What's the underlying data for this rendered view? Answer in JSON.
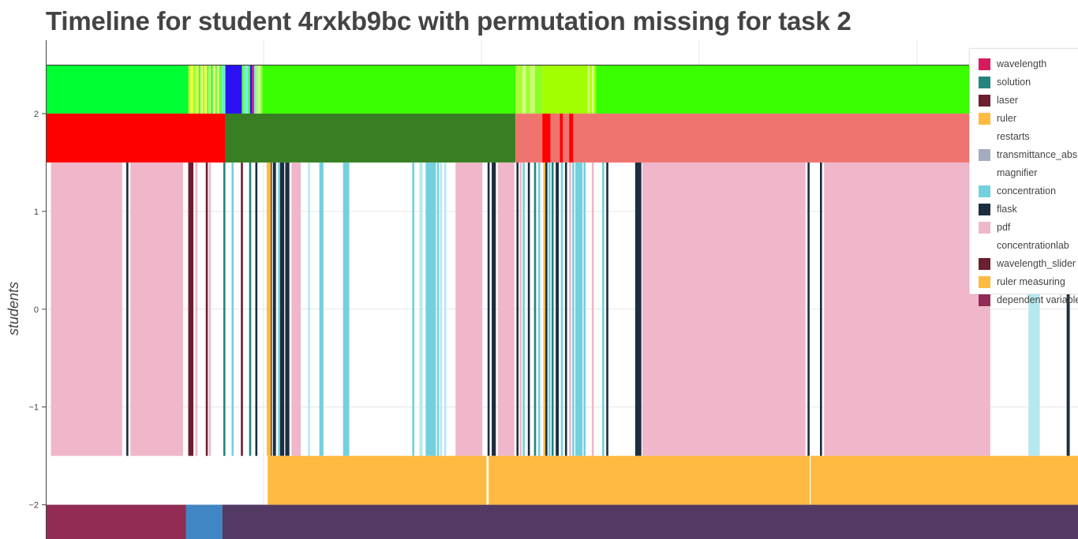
{
  "chart_data": {
    "type": "timeline",
    "title": "Timeline for student 4rxkb9bc with permutation missing for task 2",
    "ylabel": "students",
    "xlabel": "",
    "ylim": [
      -2.35,
      2.75
    ],
    "y_ticks": [
      2,
      1,
      0,
      -1,
      -2
    ],
    "y_tick_labels": [
      "2",
      "1",
      "0",
      "−1",
      "−2"
    ],
    "x_range": [
      0,
      1000
    ],
    "x_gridlines": [
      211,
      422,
      633,
      844
    ],
    "grid": true,
    "legend_position": "top-right",
    "legend": [
      {
        "label": "wavelength",
        "color": "#d81b60"
      },
      {
        "label": "solution",
        "color": "#26837d"
      },
      {
        "label": "laser",
        "color": "#6b1f31"
      },
      {
        "label": "ruler",
        "color": "#ffba42"
      },
      {
        "label": "restarts",
        "color": "#ffffff"
      },
      {
        "label": "transmittance_abs",
        "color": "#a3adbf"
      },
      {
        "label": "magnifier",
        "color": "#ffffff"
      },
      {
        "label": "concentration",
        "color": "#73d0dd"
      },
      {
        "label": "flask",
        "color": "#1b2e41"
      },
      {
        "label": "pdf",
        "color": "#efb7c9"
      },
      {
        "label": "concentrationlab",
        "color": "#ffffff"
      },
      {
        "label": "wavelength_slider",
        "color": "#6b1f31"
      },
      {
        "label": "ruler measuring",
        "color": "#ffba42"
      },
      {
        "label": "dependent variable",
        "color": "#922c54"
      }
    ],
    "rows": [
      {
        "name": "lane-top",
        "y_range": [
          2.0,
          2.5
        ],
        "segments": [
          {
            "start": 0,
            "end": 138,
            "color": "#00ff33"
          },
          {
            "start": 138,
            "end": 140,
            "color": "#b6ff3a"
          },
          {
            "start": 140,
            "end": 143,
            "color": "#e9ff33"
          },
          {
            "start": 143,
            "end": 145,
            "color": "#8bff3a"
          },
          {
            "start": 145,
            "end": 148,
            "color": "#d8ff55"
          },
          {
            "start": 148,
            "end": 150,
            "color": "#55ff2a"
          },
          {
            "start": 150,
            "end": 152,
            "color": "#f0ff70"
          },
          {
            "start": 152,
            "end": 154,
            "color": "#a8ff30"
          },
          {
            "start": 154,
            "end": 156,
            "color": "#ffff66"
          },
          {
            "start": 156,
            "end": 158,
            "color": "#66ff33"
          },
          {
            "start": 158,
            "end": 160,
            "color": "#c6ff7a"
          },
          {
            "start": 160,
            "end": 162,
            "color": "#3aff2a"
          },
          {
            "start": 162,
            "end": 164,
            "color": "#ffffa0"
          },
          {
            "start": 164,
            "end": 166,
            "color": "#7cff33"
          },
          {
            "start": 166,
            "end": 168,
            "color": "#dcff8a"
          },
          {
            "start": 168,
            "end": 170,
            "color": "#5eff33"
          },
          {
            "start": 170,
            "end": 174,
            "color": "#6cf0c0"
          },
          {
            "start": 174,
            "end": 190,
            "color": "#2a12f2"
          },
          {
            "start": 190,
            "end": 193,
            "color": "#66ff66"
          },
          {
            "start": 193,
            "end": 196,
            "color": "#7fe8f0"
          },
          {
            "start": 196,
            "end": 198,
            "color": "#3aff33"
          },
          {
            "start": 198,
            "end": 200,
            "color": "#2a12f2"
          },
          {
            "start": 200,
            "end": 202,
            "color": "#ff1a6e"
          },
          {
            "start": 202,
            "end": 204,
            "color": "#70f0e8"
          },
          {
            "start": 204,
            "end": 206,
            "color": "#b0ff60"
          },
          {
            "start": 206,
            "end": 208,
            "color": "#e8ff80"
          },
          {
            "start": 208,
            "end": 210,
            "color": "#7aff40"
          },
          {
            "start": 210,
            "end": 455,
            "color": "#3aff00"
          },
          {
            "start": 455,
            "end": 462,
            "color": "#a8ff33"
          },
          {
            "start": 462,
            "end": 465,
            "color": "#d8ff88"
          },
          {
            "start": 465,
            "end": 469,
            "color": "#9cff33"
          },
          {
            "start": 469,
            "end": 474,
            "color": "#c8ff70"
          },
          {
            "start": 474,
            "end": 481,
            "color": "#8cff22"
          },
          {
            "start": 481,
            "end": 525,
            "color": "#a2ff00"
          },
          {
            "start": 525,
            "end": 527,
            "color": "#d2ff7a"
          },
          {
            "start": 527,
            "end": 529,
            "color": "#a2ff00"
          },
          {
            "start": 529,
            "end": 531,
            "color": "#d8ff88"
          },
          {
            "start": 531,
            "end": 533,
            "color": "#a2ff00"
          },
          {
            "start": 533,
            "end": 1000,
            "color": "#3aff00"
          }
        ]
      },
      {
        "name": "lane-second",
        "y_range": [
          1.5,
          2.0
        ],
        "segments": [
          {
            "start": 0,
            "end": 174,
            "color": "#ff0000"
          },
          {
            "start": 174,
            "end": 455,
            "color": "#377f22"
          },
          {
            "start": 455,
            "end": 481,
            "color": "#ef7470"
          },
          {
            "start": 481,
            "end": 489,
            "color": "#ff0000"
          },
          {
            "start": 489,
            "end": 498,
            "color": "#ef7470"
          },
          {
            "start": 498,
            "end": 501,
            "color": "#ff0000"
          },
          {
            "start": 501,
            "end": 507,
            "color": "#ef7470"
          },
          {
            "start": 507,
            "end": 511,
            "color": "#ff0000"
          },
          {
            "start": 511,
            "end": 1000,
            "color": "#ef7470"
          }
        ]
      },
      {
        "name": "lane-tools",
        "y_range": [
          -1.5,
          1.5
        ],
        "segments": [
          {
            "start": 5,
            "end": 74,
            "color": "#efb7c9"
          },
          {
            "start": 78,
            "end": 80,
            "color": "#1b2e41"
          },
          {
            "start": 82,
            "end": 133,
            "color": "#efb7c9"
          },
          {
            "start": 138,
            "end": 143,
            "color": "#6b1f31"
          },
          {
            "start": 145,
            "end": 147,
            "color": "#efb7c9"
          },
          {
            "start": 155,
            "end": 157,
            "color": "#6b1f31"
          },
          {
            "start": 158,
            "end": 160,
            "color": "#efb7c9"
          },
          {
            "start": 172,
            "end": 174,
            "color": "#26837d"
          },
          {
            "start": 180,
            "end": 182,
            "color": "#73d0dd"
          },
          {
            "start": 189,
            "end": 191,
            "color": "#6b1f31"
          },
          {
            "start": 197,
            "end": 199,
            "color": "#26837d"
          },
          {
            "start": 203,
            "end": 205,
            "color": "#1b2e41"
          },
          {
            "start": 214,
            "end": 218,
            "color": "#ffba42"
          },
          {
            "start": 218,
            "end": 219,
            "color": "#1b2e41"
          },
          {
            "start": 220,
            "end": 223,
            "color": "#1b2e41"
          },
          {
            "start": 225,
            "end": 227,
            "color": "#73d0dd"
          },
          {
            "start": 227,
            "end": 231,
            "color": "#1b2e41"
          },
          {
            "start": 232,
            "end": 236,
            "color": "#1b2e41"
          },
          {
            "start": 238,
            "end": 247,
            "color": "#efb7c9"
          },
          {
            "start": 254,
            "end": 256,
            "color": "#b5e8ef"
          },
          {
            "start": 265,
            "end": 269,
            "color": "#73d0dd"
          },
          {
            "start": 288,
            "end": 294,
            "color": "#73d0dd"
          },
          {
            "start": 355,
            "end": 357,
            "color": "#73d0dd"
          },
          {
            "start": 362,
            "end": 365,
            "color": "#b5e8ef"
          },
          {
            "start": 368,
            "end": 378,
            "color": "#73d0dd"
          },
          {
            "start": 379,
            "end": 381,
            "color": "#73d0dd"
          },
          {
            "start": 382,
            "end": 384,
            "color": "#b5e8ef"
          },
          {
            "start": 386,
            "end": 388,
            "color": "#b5e8ef"
          },
          {
            "start": 397,
            "end": 423,
            "color": "#efb7c9"
          },
          {
            "start": 428,
            "end": 430,
            "color": "#1b2e41"
          },
          {
            "start": 432,
            "end": 436,
            "color": "#1b2e41"
          },
          {
            "start": 438,
            "end": 454,
            "color": "#efb7c9"
          },
          {
            "start": 456,
            "end": 458,
            "color": "#1b2e41"
          },
          {
            "start": 459,
            "end": 461,
            "color": "#efb7c9"
          },
          {
            "start": 462,
            "end": 464,
            "color": "#73d0dd"
          },
          {
            "start": 467,
            "end": 469,
            "color": "#1b2e41"
          },
          {
            "start": 473,
            "end": 475,
            "color": "#26837d"
          },
          {
            "start": 477,
            "end": 479,
            "color": "#73d0dd"
          },
          {
            "start": 482,
            "end": 484,
            "color": "#ffba42"
          },
          {
            "start": 484,
            "end": 486,
            "color": "#1b2e41"
          },
          {
            "start": 487,
            "end": 489,
            "color": "#73d0dd"
          },
          {
            "start": 490,
            "end": 492,
            "color": "#26837d"
          },
          {
            "start": 494,
            "end": 497,
            "color": "#1b2e41"
          },
          {
            "start": 499,
            "end": 501,
            "color": "#73d0dd"
          },
          {
            "start": 503,
            "end": 505,
            "color": "#1b2e41"
          },
          {
            "start": 507,
            "end": 509,
            "color": "#efb7c9"
          },
          {
            "start": 510,
            "end": 512,
            "color": "#73d0dd"
          },
          {
            "start": 513,
            "end": 520,
            "color": "#73d0dd"
          },
          {
            "start": 521,
            "end": 523,
            "color": "#73d0dd"
          },
          {
            "start": 529,
            "end": 531,
            "color": "#efb7c9"
          },
          {
            "start": 539,
            "end": 541,
            "color": "#73d0dd"
          },
          {
            "start": 543,
            "end": 545,
            "color": "#1b2e41"
          },
          {
            "start": 571,
            "end": 577,
            "color": "#1b2e41"
          },
          {
            "start": 578,
            "end": 736,
            "color": "#efb7c9"
          },
          {
            "start": 738,
            "end": 740,
            "color": "#1b2e41"
          },
          {
            "start": 750,
            "end": 752,
            "color": "#1b2e41"
          },
          {
            "start": 754,
            "end": 915,
            "color": "#efb7c9"
          },
          {
            "start": 952,
            "end": 963,
            "color": "#b5e8ef"
          },
          {
            "start": 989,
            "end": 992,
            "color": "#1b2e41"
          }
        ]
      },
      {
        "name": "lane-ruler",
        "y_range": [
          -2.0,
          -1.5
        ],
        "segments": [
          {
            "start": 215,
            "end": 427,
            "color": "#ffba42"
          },
          {
            "start": 429,
            "end": 740,
            "color": "#ffba42"
          },
          {
            "start": 741,
            "end": 1000,
            "color": "#ffba42"
          }
        ]
      },
      {
        "name": "lane-bottom",
        "y_range": [
          -2.35,
          -2.0
        ],
        "segments": [
          {
            "start": 0,
            "end": 136,
            "color": "#922c54"
          },
          {
            "start": 136,
            "end": 171,
            "color": "#4086c5"
          },
          {
            "start": 171,
            "end": 1000,
            "color": "#523a62"
          }
        ]
      }
    ]
  }
}
